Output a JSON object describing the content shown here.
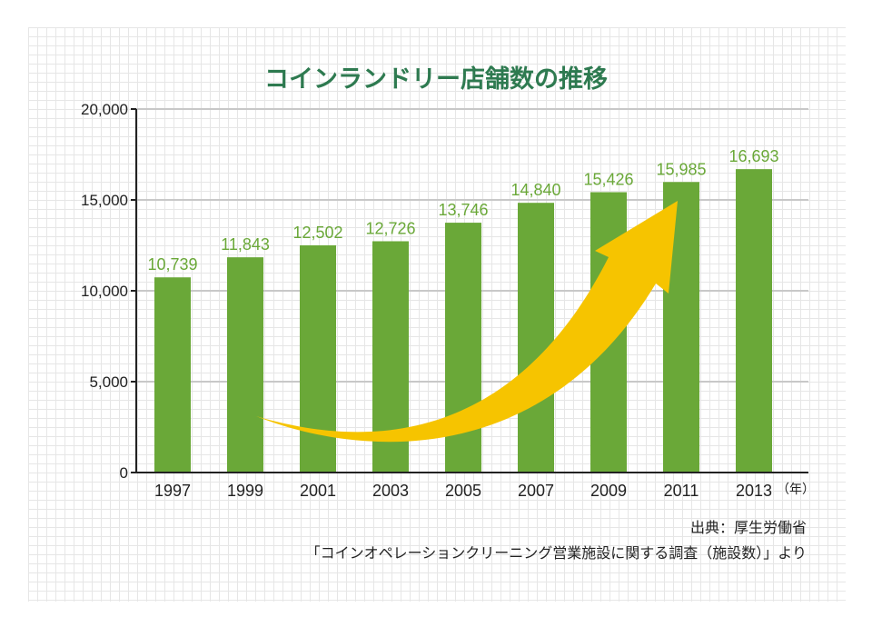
{
  "chart_data": {
    "type": "bar",
    "title": "コインランドリー店舗数の推移",
    "categories": [
      "1997",
      "1999",
      "2001",
      "2003",
      "2005",
      "2007",
      "2009",
      "2011",
      "2013"
    ],
    "values": [
      10739,
      11843,
      12502,
      12726,
      13746,
      14840,
      15426,
      15985,
      16693
    ],
    "value_labels": [
      "10,739",
      "11,843",
      "12,502",
      "12,726",
      "13,746",
      "14,840",
      "15,426",
      "15,985",
      "16,693"
    ],
    "ylim": [
      0,
      20000
    ],
    "yticks": [
      0,
      5000,
      10000,
      15000,
      20000
    ],
    "ytick_labels": [
      "0",
      "5,000",
      "10,000",
      "15,000",
      "20,000"
    ],
    "x_unit": "（年）",
    "grid": true,
    "annotation": "upward trend arrow"
  },
  "source": {
    "line1": "出典：厚生労働省",
    "line2": "「コインオペレーションクリーニング営業施設に関する調査（施設数）」より"
  },
  "colors": {
    "bar": "#6aa838",
    "label": "#6aa838",
    "title": "#2e7a50",
    "arrow": "#f6c400",
    "gridline": "#c8c8c8"
  }
}
